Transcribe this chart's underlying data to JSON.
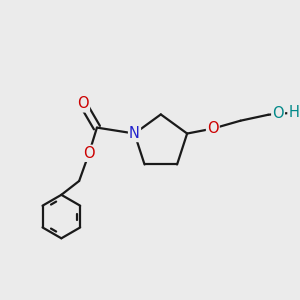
{
  "bg_color": "#ebebeb",
  "atom_colors": {
    "C": "#000000",
    "N": "#2222cc",
    "O_red": "#cc0000",
    "O_teal": "#008888",
    "H_teal": "#008888"
  },
  "bond_color": "#1a1a1a",
  "bond_width": 1.6,
  "figsize": [
    3.0,
    3.0
  ],
  "dpi": 100,
  "xlim": [
    0,
    3.0
  ],
  "ylim": [
    0,
    3.0
  ]
}
